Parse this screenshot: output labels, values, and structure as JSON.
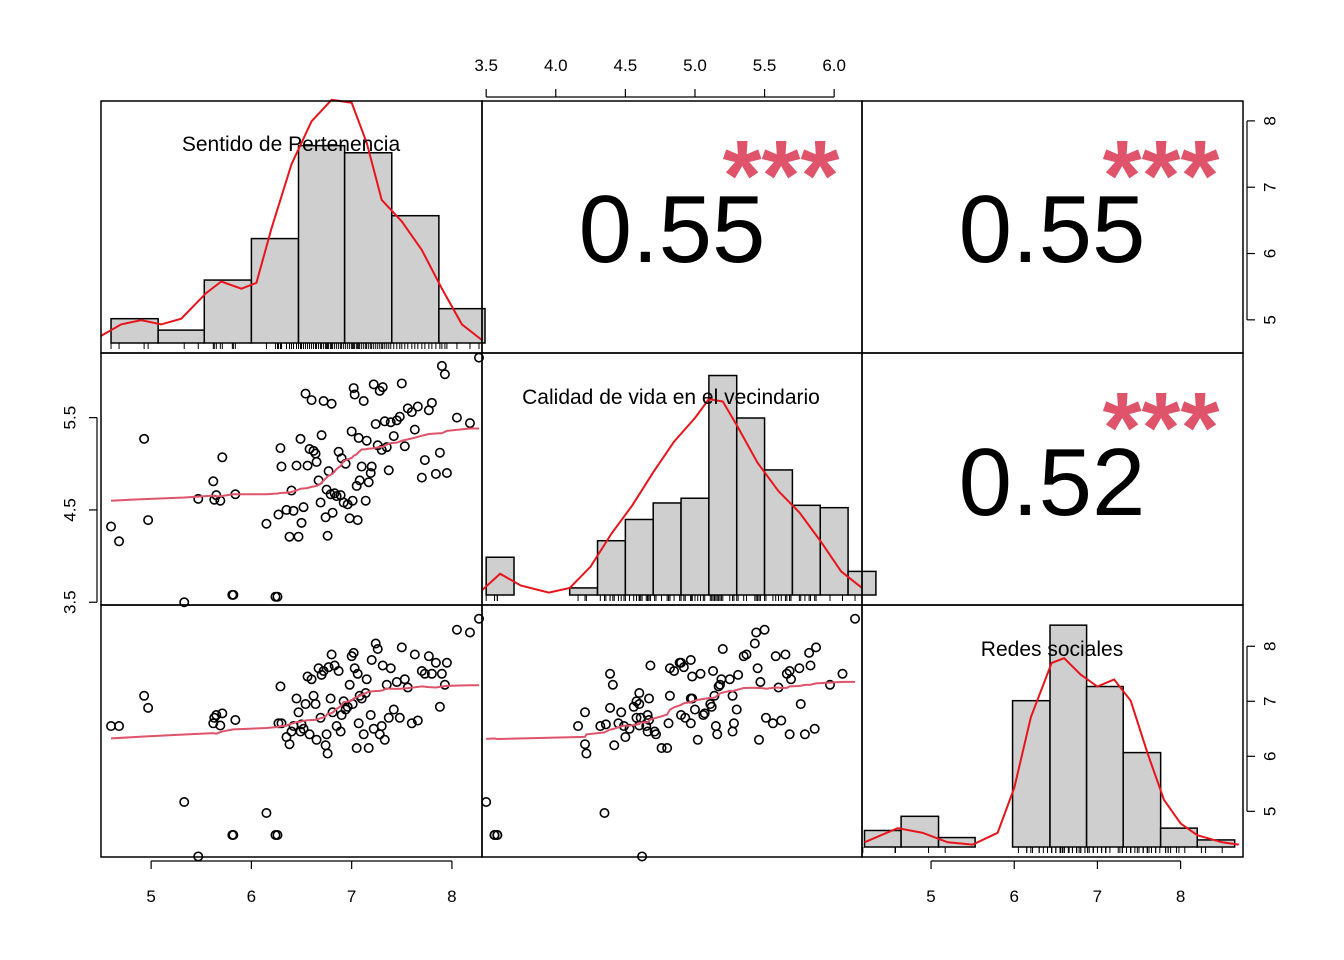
{
  "chart_data": {
    "type": "scatter",
    "variables": [
      "Sentido de Pertenencia",
      "Calidad de vida en el vecindario",
      "Redes sociales"
    ],
    "axis_ticks": {
      "sentido": [
        5,
        6,
        7,
        8
      ],
      "calidad": [
        3.5,
        4.0,
        4.5,
        5.0,
        5.5,
        6.0
      ],
      "calidad_left": [
        3.5,
        4.5,
        5.5
      ],
      "redes": [
        5,
        6,
        7,
        8
      ]
    },
    "tick_labels": {
      "sentido": [
        "5",
        "6",
        "7",
        "8"
      ],
      "calidad": [
        "3.5",
        "4.0",
        "4.5",
        "5.0",
        "5.5",
        "6.0"
      ],
      "calidad_left": [
        "3.5",
        "4.5",
        "5.5"
      ],
      "redes": [
        "5",
        "6",
        "7",
        "8"
      ]
    },
    "ranges": {
      "sentido": [
        4.5,
        8.3
      ],
      "calidad": [
        3.47,
        6.2
      ],
      "redes": [
        4.17,
        8.75
      ]
    },
    "correlations": [
      {
        "pair": [
          "Sentido de Pertenencia",
          "Calidad de vida en el vecindario"
        ],
        "value": "0.55",
        "stars": "***"
      },
      {
        "pair": [
          "Sentido de Pertenencia",
          "Redes sociales"
        ],
        "value": "0.55",
        "stars": "***"
      },
      {
        "pair": [
          "Calidad de vida en el vecindario",
          "Redes sociales"
        ],
        "value": "0.52",
        "stars": "***"
      }
    ],
    "histograms": {
      "sentido": {
        "breaks": [
          4.6,
          5.07,
          5.53,
          6.0,
          6.47,
          6.93,
          7.4,
          7.87,
          8.33
        ],
        "heights": [
          0.17,
          0.09,
          0.44,
          0.73,
          1.38,
          1.33,
          0.89,
          0.24
        ],
        "ymax": 1.65,
        "density": [
          [
            4.5,
            0.05
          ],
          [
            4.7,
            0.13
          ],
          [
            4.9,
            0.16
          ],
          [
            5.1,
            0.13
          ],
          [
            5.3,
            0.17
          ],
          [
            5.55,
            0.35
          ],
          [
            5.7,
            0.43
          ],
          [
            5.9,
            0.38
          ],
          [
            6.05,
            0.42
          ],
          [
            6.2,
            0.8
          ],
          [
            6.4,
            1.25
          ],
          [
            6.6,
            1.55
          ],
          [
            6.8,
            1.7
          ],
          [
            7.0,
            1.68
          ],
          [
            7.15,
            1.4
          ],
          [
            7.3,
            1.0
          ],
          [
            7.5,
            0.85
          ],
          [
            7.7,
            0.65
          ],
          [
            7.9,
            0.38
          ],
          [
            8.1,
            0.13
          ],
          [
            8.3,
            0.02
          ]
        ]
      },
      "calidad": {
        "breaks": [
          3.5,
          3.6,
          3.7,
          3.8,
          3.9,
          4.0,
          4.1,
          4.2,
          4.3,
          4.4,
          4.5,
          4.6,
          4.7,
          4.8,
          4.9,
          5.0
        ],
        "heights": [],
        "ymax": 1.0,
        "density": []
      },
      "redes": {
        "breaks": [
          4.2,
          4.64,
          5.09,
          5.53,
          5.98,
          6.43,
          6.87,
          7.31,
          7.76,
          8.2,
          8.65
        ],
        "heights": [
          0.07,
          0.13,
          0.04,
          0.0,
          0.62,
          0.94,
          0.68,
          0.4,
          0.08,
          0.03
        ],
        "ymax": 1.0,
        "density": [
          [
            4.2,
            0.02
          ],
          [
            4.4,
            0.05
          ],
          [
            4.6,
            0.08
          ],
          [
            4.9,
            0.06
          ],
          [
            5.2,
            0.02
          ],
          [
            5.5,
            0.01
          ],
          [
            5.8,
            0.06
          ],
          [
            6.0,
            0.25
          ],
          [
            6.2,
            0.55
          ],
          [
            6.45,
            0.78
          ],
          [
            6.6,
            0.8
          ],
          [
            6.8,
            0.73
          ],
          [
            7.0,
            0.68
          ],
          [
            7.2,
            0.71
          ],
          [
            7.4,
            0.62
          ],
          [
            7.6,
            0.4
          ],
          [
            7.8,
            0.2
          ],
          [
            8.0,
            0.1
          ],
          [
            8.2,
            0.05
          ],
          [
            8.5,
            0.02
          ],
          [
            8.7,
            0.01
          ]
        ]
      }
    },
    "hist_calidad": {
      "breaks": [
        3.5,
        3.7,
        3.9,
        4.1,
        4.3,
        4.5,
        4.7,
        4.9,
        5.1,
        5.3,
        5.5,
        5.7,
        5.9,
        6.1,
        6.3
      ],
      "heights": [
        0.16,
        0.0,
        0.0,
        0.03,
        0.23,
        0.32,
        0.39,
        0.41,
        0.93,
        0.75,
        0.53,
        0.38,
        0.37,
        0.1
      ]
    },
    "calidad_density": [
      [
        3.47,
        0.02
      ],
      [
        3.6,
        0.09
      ],
      [
        3.75,
        0.04
      ],
      [
        3.95,
        0.01
      ],
      [
        4.1,
        0.03
      ],
      [
        4.25,
        0.12
      ],
      [
        4.4,
        0.26
      ],
      [
        4.55,
        0.38
      ],
      [
        4.7,
        0.52
      ],
      [
        4.85,
        0.65
      ],
      [
        5.0,
        0.75
      ],
      [
        5.1,
        0.83
      ],
      [
        5.2,
        0.82
      ],
      [
        5.3,
        0.72
      ],
      [
        5.45,
        0.56
      ],
      [
        5.6,
        0.44
      ],
      [
        5.75,
        0.35
      ],
      [
        5.9,
        0.23
      ],
      [
        6.05,
        0.1
      ],
      [
        6.2,
        0.03
      ]
    ],
    "points": [
      {
        "s": 4.6,
        "c": 4.32,
        "r": 6.55
      },
      {
        "s": 4.68,
        "c": 4.16,
        "r": 6.55
      },
      {
        "s": 4.93,
        "c": 5.27,
        "r": 7.1
      },
      {
        "s": 4.97,
        "c": 4.39,
        "r": 6.88
      },
      {
        "s": 5.33,
        "c": 3.5,
        "r": 5.17
      },
      {
        "s": 5.47,
        "c": 4.62,
        "r": 4.18
      },
      {
        "s": 5.62,
        "c": 4.81,
        "r": 6.6
      },
      {
        "s": 5.63,
        "c": 4.61,
        "r": 6.7
      },
      {
        "s": 5.65,
        "c": 4.66,
        "r": 6.75
      },
      {
        "s": 5.69,
        "c": 4.6,
        "r": 6.56
      },
      {
        "s": 5.71,
        "c": 5.07,
        "r": 6.78
      },
      {
        "s": 5.81,
        "c": 3.58,
        "r": 4.57
      },
      {
        "s": 5.82,
        "c": 3.58,
        "r": 4.57
      },
      {
        "s": 5.84,
        "c": 4.67,
        "r": 6.66
      },
      {
        "s": 6.15,
        "c": 4.35,
        "r": 4.97
      },
      {
        "s": 6.24,
        "c": 3.56,
        "r": 4.57
      },
      {
        "s": 6.26,
        "c": 3.56,
        "r": 4.57
      },
      {
        "s": 6.27,
        "c": 4.45,
        "r": 6.6
      },
      {
        "s": 6.29,
        "c": 5.17,
        "r": 7.27
      },
      {
        "s": 6.3,
        "c": 4.97,
        "r": 6.6
      },
      {
        "s": 6.35,
        "c": 4.5,
        "r": 6.35
      },
      {
        "s": 6.38,
        "c": 4.21,
        "r": 6.22
      },
      {
        "s": 6.4,
        "c": 4.71,
        "r": 6.45
      },
      {
        "s": 6.42,
        "c": 4.49,
        "r": 6.55
      },
      {
        "s": 6.45,
        "c": 4.98,
        "r": 7.05
      },
      {
        "s": 6.47,
        "c": 4.21,
        "r": 6.8
      },
      {
        "s": 6.49,
        "c": 5.27,
        "r": 6.45
      },
      {
        "s": 6.5,
        "c": 4.36,
        "r": 6.58
      },
      {
        "s": 6.52,
        "c": 4.53,
        "r": 6.5
      },
      {
        "s": 6.54,
        "c": 5.76,
        "r": 6.95
      },
      {
        "s": 6.56,
        "c": 4.98,
        "r": 7.45
      },
      {
        "s": 6.58,
        "c": 5.16,
        "r": 6.4
      },
      {
        "s": 6.6,
        "c": 5.69,
        "r": 7.4
      },
      {
        "s": 6.62,
        "c": 5.14,
        "r": 7.1
      },
      {
        "s": 6.64,
        "c": 5.11,
        "r": 6.95
      },
      {
        "s": 6.65,
        "c": 5.02,
        "r": 6.3
      },
      {
        "s": 6.67,
        "c": 4.82,
        "r": 7.6
      },
      {
        "s": 6.69,
        "c": 4.58,
        "r": 6.7
      },
      {
        "s": 6.7,
        "c": 5.31,
        "r": 7.48
      },
      {
        "s": 6.72,
        "c": 5.68,
        "r": 7.55
      },
      {
        "s": 6.74,
        "c": 4.42,
        "r": 6.2
      },
      {
        "s": 6.75,
        "c": 4.72,
        "r": 6.4
      },
      {
        "s": 6.76,
        "c": 4.22,
        "r": 6.05
      },
      {
        "s": 6.77,
        "c": 4.92,
        "r": 7.62
      },
      {
        "s": 6.79,
        "c": 4.67,
        "r": 7.05
      },
      {
        "s": 6.8,
        "c": 5.65,
        "r": 7.85
      },
      {
        "s": 6.81,
        "c": 4.47,
        "r": 6.8
      },
      {
        "s": 6.83,
        "c": 4.68,
        "r": 7.65
      },
      {
        "s": 6.85,
        "c": 4.65,
        "r": 6.55
      },
      {
        "s": 6.87,
        "c": 5.13,
        "r": 7.55
      },
      {
        "s": 6.89,
        "c": 4.66,
        "r": 6.45
      },
      {
        "s": 6.9,
        "c": 5.06,
        "r": 6.75
      },
      {
        "s": 6.92,
        "c": 4.58,
        "r": 7.0
      },
      {
        "s": 6.94,
        "c": 5.0,
        "r": 6.85
      },
      {
        "s": 6.96,
        "c": 4.56,
        "r": 6.9
      },
      {
        "s": 6.98,
        "c": 4.41,
        "r": 7.3
      },
      {
        "s": 7.0,
        "c": 5.35,
        "r": 7.82
      },
      {
        "s": 7.01,
        "c": 4.6,
        "r": 6.95
      },
      {
        "s": 7.02,
        "c": 5.82,
        "r": 7.88
      },
      {
        "s": 7.03,
        "c": 5.75,
        "r": 7.6
      },
      {
        "s": 7.05,
        "c": 4.76,
        "r": 6.15
      },
      {
        "s": 7.06,
        "c": 4.39,
        "r": 7.5
      },
      {
        "s": 7.07,
        "c": 5.28,
        "r": 6.6
      },
      {
        "s": 7.08,
        "c": 4.82,
        "r": 7.1
      },
      {
        "s": 7.1,
        "c": 4.97,
        "r": 7.05
      },
      {
        "s": 7.12,
        "c": 5.68,
        "r": 6.4
      },
      {
        "s": 7.14,
        "c": 4.6,
        "r": 7.15
      },
      {
        "s": 7.15,
        "c": 5.25,
        "r": 7.4
      },
      {
        "s": 7.17,
        "c": 4.8,
        "r": 6.15
      },
      {
        "s": 7.19,
        "c": 4.9,
        "r": 6.75
      },
      {
        "s": 7.2,
        "c": 4.97,
        "r": 7.75
      },
      {
        "s": 7.22,
        "c": 5.86,
        "r": 6.5
      },
      {
        "s": 7.24,
        "c": 5.43,
        "r": 8.05
      },
      {
        "s": 7.26,
        "c": 5.2,
        "r": 7.95
      },
      {
        "s": 7.28,
        "c": 5.79,
        "r": 6.4
      },
      {
        "s": 7.3,
        "c": 5.15,
        "r": 6.55
      },
      {
        "s": 7.31,
        "c": 5.83,
        "r": 7.65
      },
      {
        "s": 7.33,
        "c": 5.46,
        "r": 6.3
      },
      {
        "s": 7.35,
        "c": 5.18,
        "r": 7.3
      },
      {
        "s": 7.37,
        "c": 4.93,
        "r": 6.7
      },
      {
        "s": 7.39,
        "c": 5.45,
        "r": 7.6
      },
      {
        "s": 7.42,
        "c": 5.3,
        "r": 6.85
      },
      {
        "s": 7.45,
        "c": 5.47,
        "r": 7.35
      },
      {
        "s": 7.48,
        "c": 5.51,
        "r": 6.7
      },
      {
        "s": 7.5,
        "c": 5.87,
        "r": 7.98
      },
      {
        "s": 7.53,
        "c": 5.19,
        "r": 7.4
      },
      {
        "s": 7.56,
        "c": 5.6,
        "r": 7.25
      },
      {
        "s": 7.6,
        "c": 5.56,
        "r": 6.6
      },
      {
        "s": 7.63,
        "c": 5.37,
        "r": 7.85
      },
      {
        "s": 7.66,
        "c": 5.62,
        "r": 6.65
      },
      {
        "s": 7.7,
        "c": 4.85,
        "r": 7.55
      },
      {
        "s": 7.73,
        "c": 5.04,
        "r": 7.5
      },
      {
        "s": 7.77,
        "c": 5.58,
        "r": 7.82
      },
      {
        "s": 7.8,
        "c": 5.66,
        "r": 7.5
      },
      {
        "s": 7.84,
        "c": 4.89,
        "r": 7.7
      },
      {
        "s": 7.88,
        "c": 5.12,
        "r": 6.9
      },
      {
        "s": 7.9,
        "c": 6.06,
        "r": 7.5
      },
      {
        "s": 7.93,
        "c": 5.97,
        "r": 7.3
      },
      {
        "s": 7.95,
        "c": 4.9,
        "r": 7.7
      },
      {
        "s": 8.05,
        "c": 5.5,
        "r": 8.3
      },
      {
        "s": 8.18,
        "c": 5.44,
        "r": 8.25
      },
      {
        "s": 8.27,
        "c": 6.15,
        "r": 8.5
      }
    ]
  }
}
